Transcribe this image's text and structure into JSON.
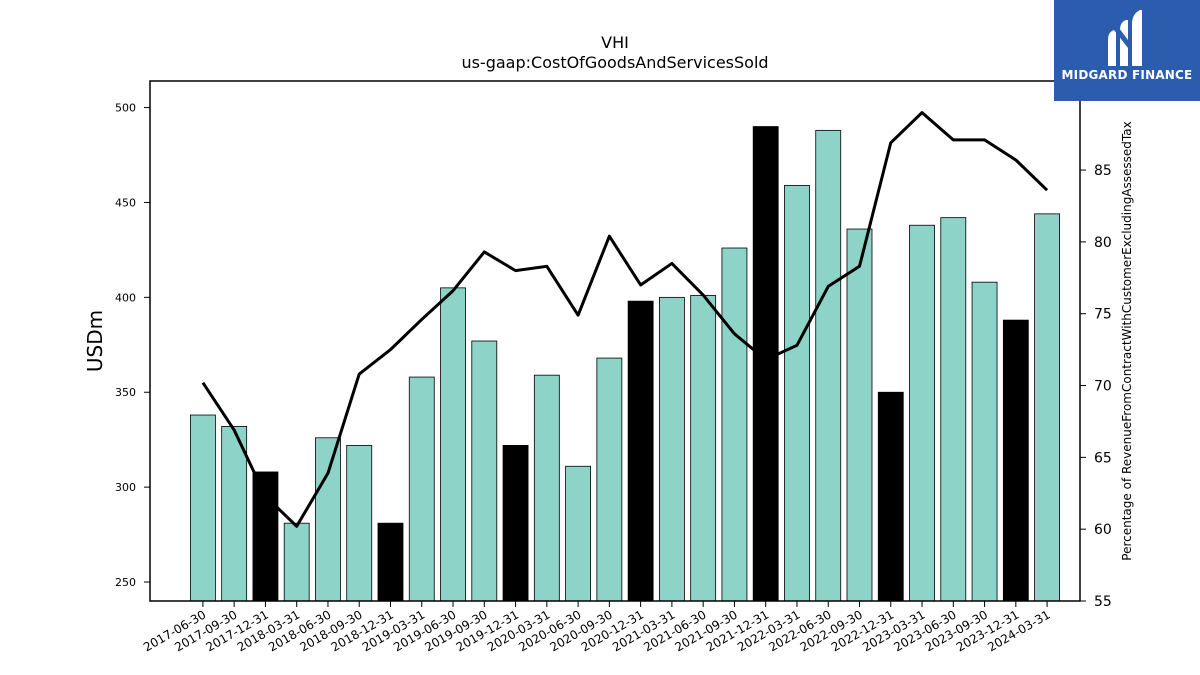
{
  "chart_data": {
    "type": "bar",
    "title": "VHI",
    "subtitle": "us-gaap:CostOfGoodsAndServicesSold",
    "ylabel": "USDm",
    "ylabel_right": "Percentage of RevenueFromContractWithCustomerExcludingAssessedTax",
    "ylim": [
      240,
      514
    ],
    "ylim_right": [
      55,
      91.2
    ],
    "yticks": [
      250,
      300,
      350,
      400,
      450,
      500
    ],
    "yticks_right": [
      55,
      60,
      65,
      70,
      75,
      80,
      85
    ],
    "categories": [
      "2017-06-30",
      "2017-09-30",
      "2017-12-31",
      "2018-03-31",
      "2018-06-30",
      "2018-09-30",
      "2018-12-31",
      "2019-03-31",
      "2019-06-30",
      "2019-09-30",
      "2019-12-31",
      "2020-03-31",
      "2020-06-30",
      "2020-09-30",
      "2020-12-31",
      "2021-03-31",
      "2021-06-30",
      "2021-09-30",
      "2021-12-31",
      "2022-03-31",
      "2022-06-30",
      "2022-09-30",
      "2022-12-31",
      "2023-03-31",
      "2023-06-30",
      "2023-09-30",
      "2023-12-31",
      "2024-03-31"
    ],
    "series": [
      {
        "kind": "bar",
        "values": [
          338,
          332,
          308,
          281,
          326,
          322,
          281,
          358,
          405,
          377,
          322,
          359,
          311,
          368,
          398,
          400,
          401,
          426,
          490,
          459,
          488,
          436,
          350,
          438,
          442,
          408,
          388,
          444
        ],
        "highlight": [
          false,
          false,
          true,
          false,
          false,
          false,
          true,
          false,
          false,
          false,
          true,
          false,
          false,
          false,
          true,
          false,
          false,
          false,
          true,
          false,
          false,
          false,
          true,
          false,
          false,
          false,
          true,
          false
        ]
      },
      {
        "kind": "line",
        "axis": "right",
        "values": [
          70.2,
          66.9,
          62.3,
          60.2,
          63.9,
          70.8,
          72.5,
          74.6,
          76.6,
          79.3,
          78.0,
          78.3,
          74.9,
          80.4,
          77.0,
          78.5,
          76.3,
          73.6,
          71.8,
          72.8,
          76.9,
          78.3,
          86.9,
          89.0,
          87.1,
          87.1,
          85.7,
          83.6
        ]
      }
    ],
    "colors": {
      "bar": "#8dd3c7",
      "bar_highlight": "#000000",
      "line": "#000000",
      "edge": "#000000"
    },
    "grid": false
  },
  "logo": {
    "text": "MIDGARD FINANCE",
    "color": "#2b5cad"
  }
}
